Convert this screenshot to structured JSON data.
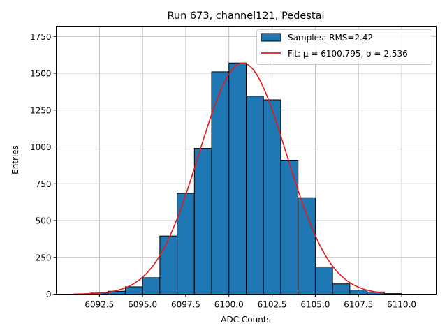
{
  "chart_data": {
    "type": "bar",
    "title": "Run 673, channel121, Pedestal",
    "xlabel": "ADC Counts",
    "ylabel": "Entries",
    "xlim": [
      6090.0,
      6112.0
    ],
    "ylim": [
      0,
      1820
    ],
    "xticks": [
      6092.5,
      6095.0,
      6097.5,
      6100.0,
      6102.5,
      6105.0,
      6107.5,
      6110.0
    ],
    "xtick_labels": [
      "6092.5",
      "6095.0",
      "6097.5",
      "6100.0",
      "6102.5",
      "6105.0",
      "6107.5",
      "6110.0"
    ],
    "yticks": [
      0,
      250,
      500,
      750,
      1000,
      1250,
      1500,
      1750
    ],
    "ytick_labels": [
      "0",
      "250",
      "500",
      "750",
      "1000",
      "1250",
      "1500",
      "1750"
    ],
    "grid": true,
    "legend_position": "top-right",
    "bin_width": 1,
    "bins": [
      {
        "left": 6092,
        "count": 8
      },
      {
        "left": 6093,
        "count": 20
      },
      {
        "left": 6094,
        "count": 50
      },
      {
        "left": 6095,
        "count": 112
      },
      {
        "left": 6096,
        "count": 395
      },
      {
        "left": 6097,
        "count": 685
      },
      {
        "left": 6098,
        "count": 990
      },
      {
        "left": 6099,
        "count": 1510
      },
      {
        "left": 6100,
        "count": 1570
      },
      {
        "left": 6101,
        "count": 1345
      },
      {
        "left": 6102,
        "count": 1320
      },
      {
        "left": 6103,
        "count": 910
      },
      {
        "left": 6104,
        "count": 655
      },
      {
        "left": 6105,
        "count": 185
      },
      {
        "left": 6106,
        "count": 70
      },
      {
        "left": 6107,
        "count": 28
      },
      {
        "left": 6108,
        "count": 15
      },
      {
        "left": 6109,
        "count": 4
      }
    ],
    "fit": {
      "mu": 6100.795,
      "sigma": 2.536,
      "amplitude": 1570,
      "x_range": [
        6091,
        6109
      ]
    },
    "series": [
      {
        "name": "Samples: RMS=2.42",
        "color": "#1f77b4"
      },
      {
        "name": "Fit: μ = 6100.795, σ = 2.536",
        "color": "#e31a1c"
      }
    ]
  }
}
